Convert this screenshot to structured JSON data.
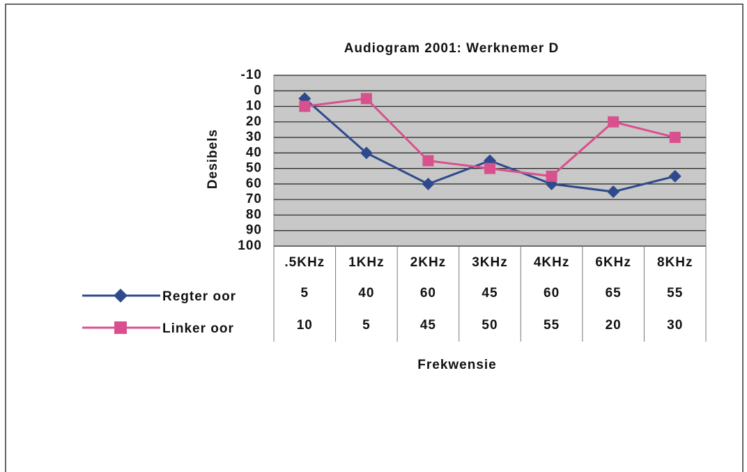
{
  "chart_data": {
    "type": "line",
    "title": "Audiogram 2001: Werknemer D",
    "y_label": "Desibels",
    "x_label": "Frekwensie",
    "categories": [
      ".5KHz",
      "1KHz",
      "2KHz",
      "3KHz",
      "4KHz",
      "6KHz",
      "8KHz"
    ],
    "series": [
      {
        "name": "Regter oor",
        "color": "#2e4a8c",
        "marker": "diamond",
        "values": [
          5,
          40,
          60,
          45,
          60,
          65,
          55
        ]
      },
      {
        "name": "Linker oor",
        "color": "#d9508e",
        "marker": "square",
        "values": [
          10,
          5,
          45,
          50,
          55,
          20,
          30
        ]
      }
    ],
    "ylim": [
      -10,
      100
    ],
    "yticks": [
      -10,
      0,
      10,
      20,
      30,
      40,
      50,
      60,
      70,
      80,
      90,
      100
    ],
    "y_inverted": true,
    "grid": true,
    "data_table": true
  }
}
